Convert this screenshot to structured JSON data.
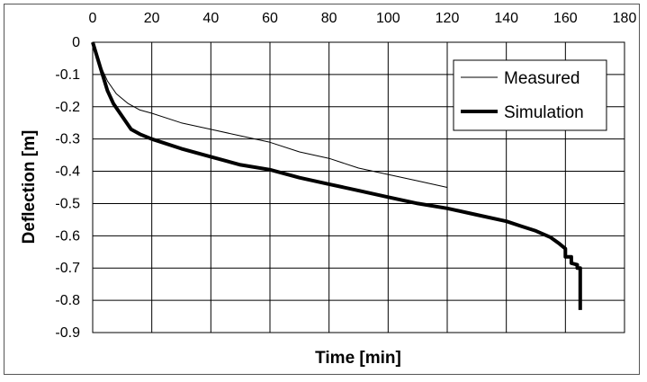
{
  "chart_data": {
    "type": "line",
    "title": "",
    "xlabel": "Time [min]",
    "ylabel": "Deflection [m]",
    "xlim": [
      0,
      180
    ],
    "ylim": [
      -0.9,
      0
    ],
    "x_axis_position": "top",
    "x_ticks": [
      0,
      20,
      40,
      60,
      80,
      100,
      120,
      140,
      160,
      180
    ],
    "y_ticks": [
      0,
      -0.1,
      -0.2,
      -0.3,
      -0.4,
      -0.5,
      -0.6,
      -0.7,
      -0.8,
      -0.9
    ],
    "grid": true,
    "legend_position": "top-right",
    "series": [
      {
        "name": "Measured",
        "color": "#000000",
        "style": "thin",
        "x": [
          0,
          2,
          5,
          8,
          12,
          16,
          20,
          30,
          40,
          50,
          60,
          70,
          80,
          90,
          100,
          110,
          120
        ],
        "y": [
          0,
          -0.06,
          -0.12,
          -0.16,
          -0.19,
          -0.21,
          -0.22,
          -0.25,
          -0.27,
          -0.29,
          -0.31,
          -0.34,
          -0.36,
          -0.39,
          -0.41,
          -0.43,
          -0.45
        ]
      },
      {
        "name": "Simulation",
        "color": "#000000",
        "style": "thick",
        "x": [
          0,
          1,
          3,
          5,
          7,
          10,
          13,
          16,
          20,
          30,
          40,
          50,
          60,
          70,
          80,
          90,
          100,
          110,
          120,
          130,
          140,
          145,
          150,
          155,
          158,
          160,
          160,
          162,
          162,
          164,
          164,
          165,
          165
        ],
        "y": [
          0,
          -0.03,
          -0.09,
          -0.15,
          -0.19,
          -0.23,
          -0.27,
          -0.285,
          -0.3,
          -0.33,
          -0.355,
          -0.38,
          -0.395,
          -0.42,
          -0.44,
          -0.46,
          -0.48,
          -0.5,
          -0.515,
          -0.535,
          -0.555,
          -0.57,
          -0.585,
          -0.605,
          -0.625,
          -0.64,
          -0.665,
          -0.665,
          -0.685,
          -0.69,
          -0.7,
          -0.7,
          -0.83
        ]
      }
    ]
  }
}
